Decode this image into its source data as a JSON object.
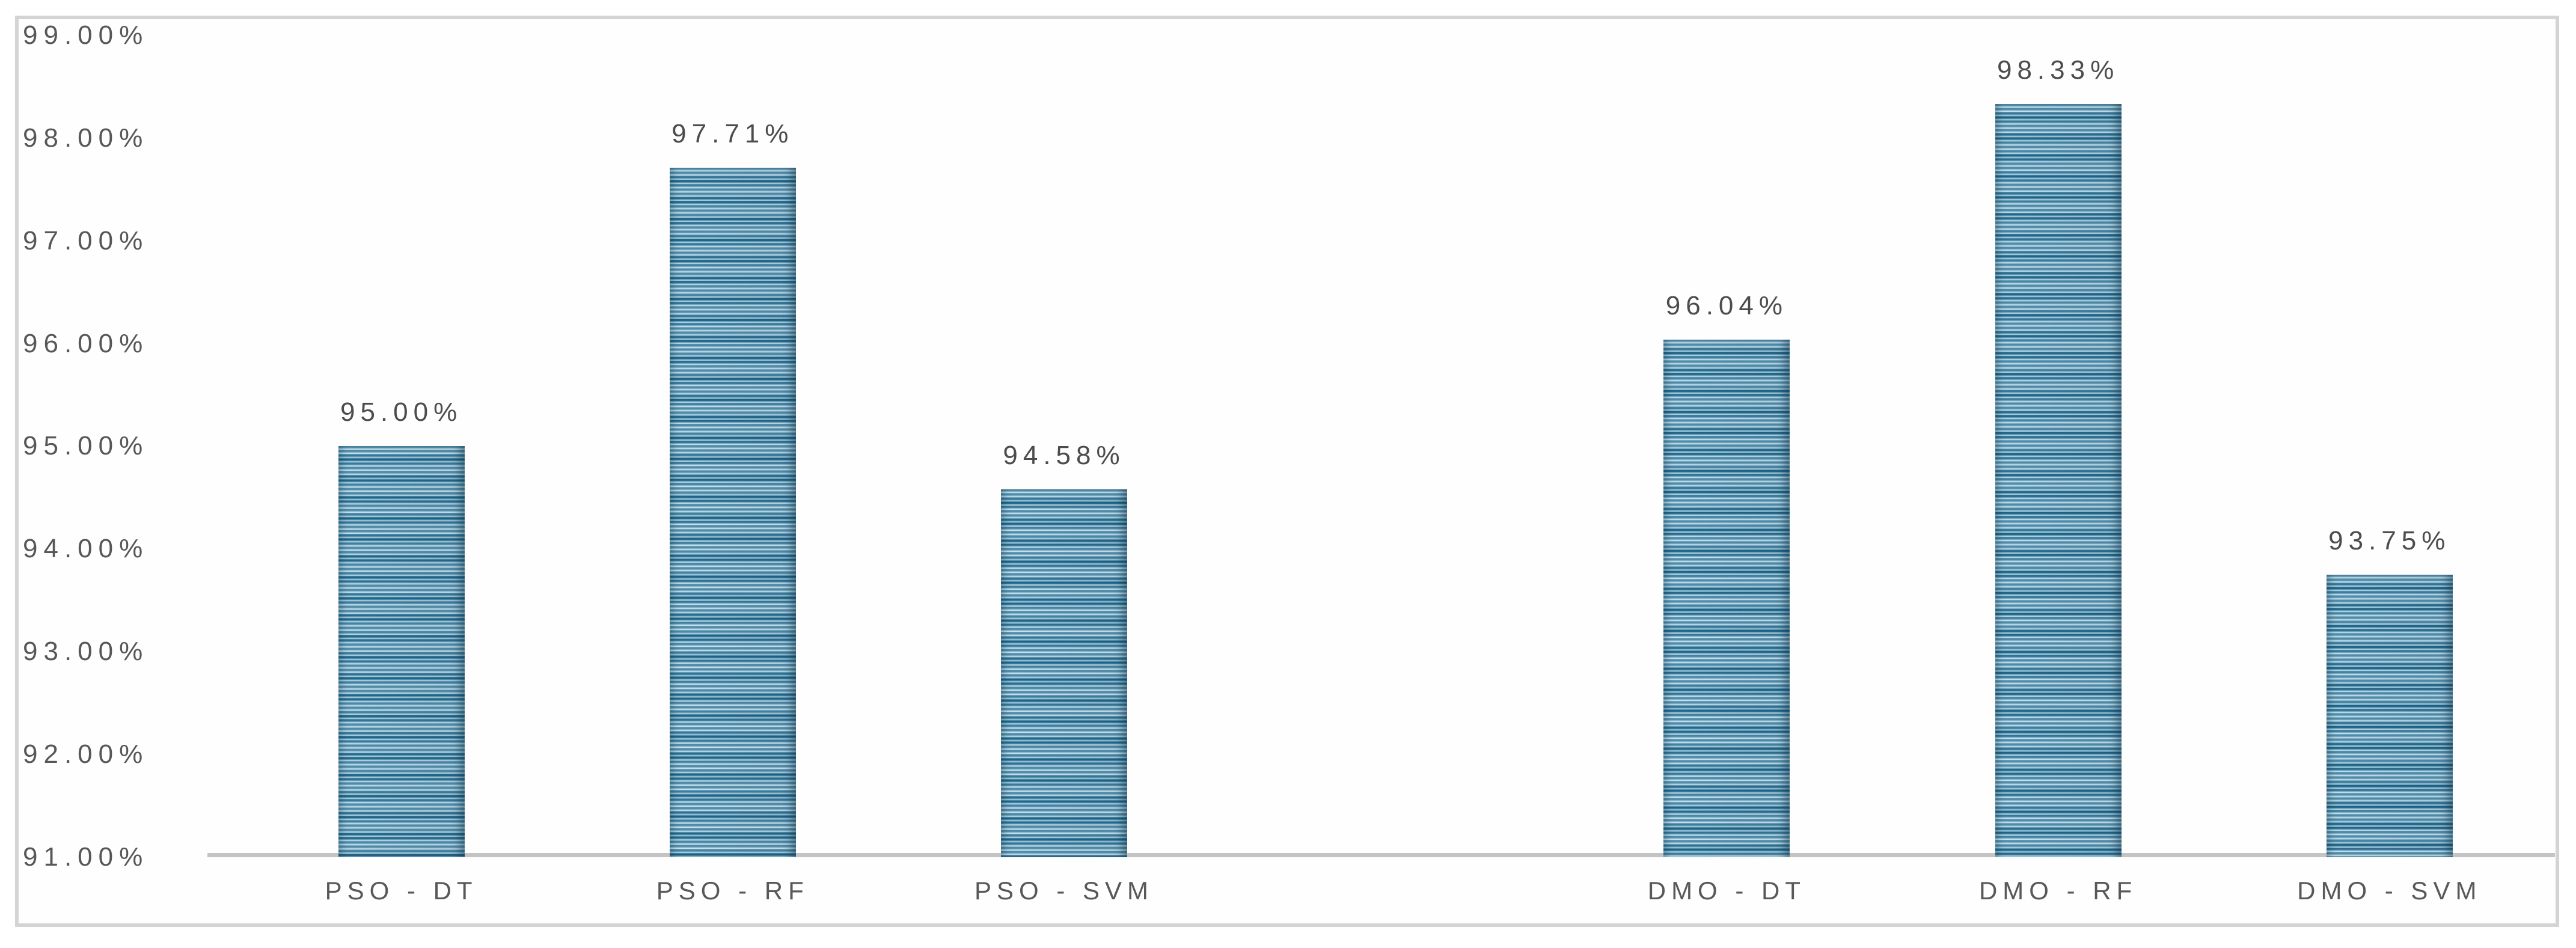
{
  "chart_data": {
    "type": "bar",
    "title": "",
    "xlabel": "",
    "ylabel": "",
    "categories": [
      "PSO - DT",
      "PSO - RF",
      "PSO - SVM",
      "DMO - DT",
      "DMO - RF",
      "DMO - SVM"
    ],
    "values": [
      95.0,
      97.71,
      94.58,
      96.04,
      98.33,
      93.75
    ],
    "data_labels": [
      "95.00%",
      "97.71%",
      "94.58%",
      "96.04%",
      "98.33%",
      "93.75%"
    ],
    "groups": [
      {
        "prefix": "PSO",
        "members": [
          "PSO - DT",
          "PSO - RF",
          "PSO - SVM"
        ]
      },
      {
        "prefix": "DMO",
        "members": [
          "DMO - DT",
          "DMO - RF",
          "DMO - SVM"
        ]
      }
    ],
    "gap_after_index": 2,
    "ylim": [
      91,
      99
    ],
    "y_tick_step": 1,
    "y_tick_labels": [
      "99.00%",
      "98.00%",
      "97.00%",
      "96.00%",
      "95.00%",
      "94.00%",
      "93.00%",
      "92.00%",
      "91.00%"
    ],
    "grid": false,
    "legend": "none",
    "bar_texture": "horizontal-stripes",
    "colors": {
      "bar_stripe_light": "#b3dbeb",
      "bar_stripe_mid": "#5f9fbf",
      "bar_stripe_dark": "#226a8f",
      "axis_line": "#c4c4c4",
      "frame_border": "#d4d4d4",
      "tick_text": "#575757",
      "data_label_text": "#4c4c4c",
      "category_text": "#585858",
      "background": "#ffffff"
    }
  }
}
